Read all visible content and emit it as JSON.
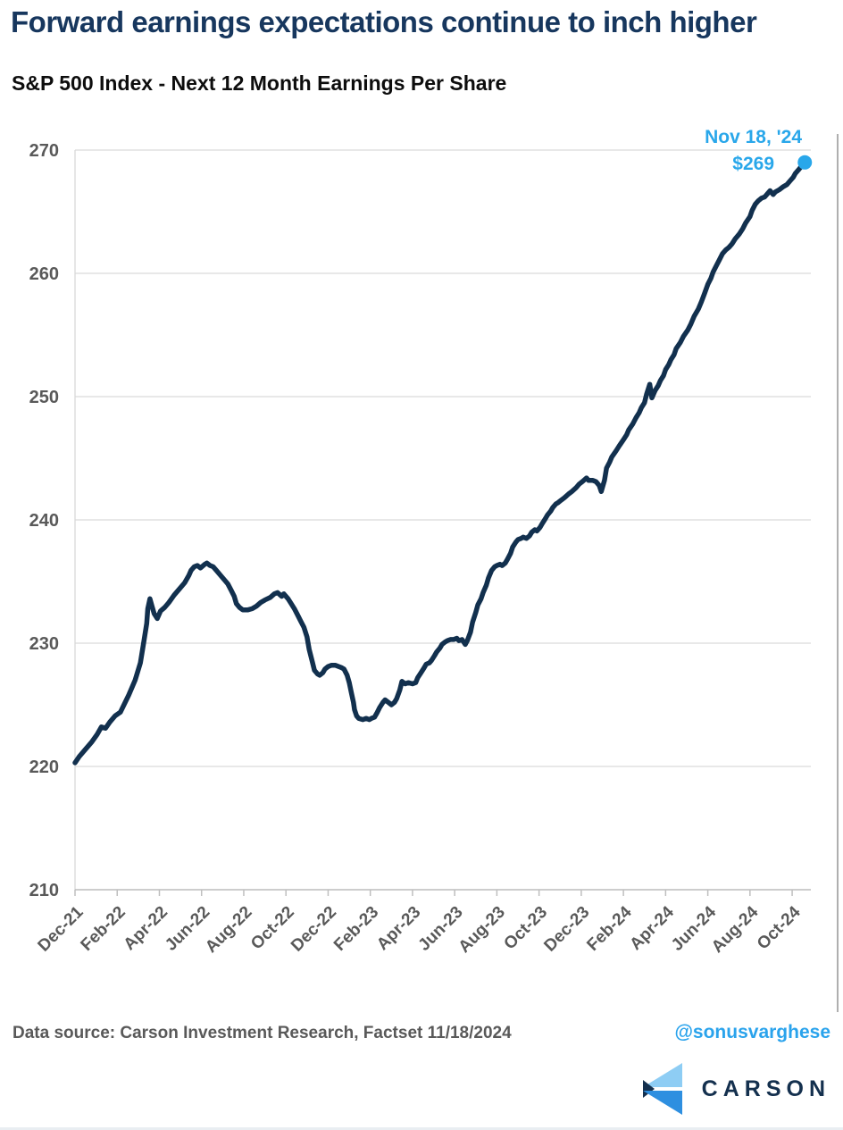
{
  "header": {
    "title": "Forward earnings expectations continue to inch higher",
    "subtitle": "S&P 500 Index - Next 12 Month Earnings Per Share"
  },
  "annotation": {
    "date_label": "Nov 18, '24",
    "value_label": "$269"
  },
  "footer": {
    "source": "Data source: Carson Investment Research, Factset   11/18/2024",
    "handle": "@sonusvarghese"
  },
  "logo": {
    "wordmark": "CARSON"
  },
  "colors": {
    "title_navy": "#17375e",
    "line_navy": "#12304e",
    "accent_blue": "#29a7ea",
    "handle_blue": "#2aa3ec",
    "axis_text_gray": "#595959",
    "gridline_gray": "#d9d9d9",
    "axis_line_gray": "#bfbfbf",
    "logo_light_blue": "#8ecdf4",
    "logo_mid_blue": "#2e8fe0",
    "logo_navy": "#14304e"
  },
  "icons": {
    "carson_mark": "carson-chevron-logo",
    "last_point_marker": "data-point-dot"
  },
  "chart_data": {
    "type": "line",
    "title": "S&P 500 Index - Next 12 Month Earnings Per Share",
    "xlabel": "",
    "ylabel": "",
    "grid": true,
    "legend": "none",
    "y_axis": {
      "range": [
        210,
        270
      ],
      "ticks": [
        270,
        260,
        250,
        240,
        230,
        220,
        210
      ]
    },
    "x_axis": {
      "unit": "months since Dec-2021",
      "tick_every_months": 2,
      "tick_labels": [
        "Dec-21",
        "Feb-22",
        "Apr-22",
        "Jun-22",
        "Aug-22",
        "Oct-22",
        "Dec-22",
        "Feb-23",
        "Apr-23",
        "Jun-23",
        "Aug-23",
        "Oct-23",
        "Dec-23",
        "Feb-24",
        "Apr-24",
        "Jun-24",
        "Aug-24",
        "Oct-24"
      ],
      "label_rotation_deg": -45
    },
    "last_point": {
      "date": "Nov 18, '24",
      "value": 269
    },
    "series": [
      {
        "name": "Next 12 Month EPS",
        "color": "#12304e",
        "points": [
          [
            0,
            220.3
          ],
          [
            0.2,
            220.8
          ],
          [
            0.5,
            221.4
          ],
          [
            0.8,
            222.0
          ],
          [
            1.05,
            222.6
          ],
          [
            1.25,
            223.2
          ],
          [
            1.45,
            223.1
          ],
          [
            1.65,
            223.6
          ],
          [
            1.9,
            224.1
          ],
          [
            2.15,
            224.4
          ],
          [
            2.55,
            225.8
          ],
          [
            2.85,
            227.0
          ],
          [
            3.1,
            228.4
          ],
          [
            3.25,
            230.0
          ],
          [
            3.4,
            231.6
          ],
          [
            3.45,
            232.8
          ],
          [
            3.55,
            233.6
          ],
          [
            3.65,
            233.0
          ],
          [
            3.75,
            232.4
          ],
          [
            3.9,
            232.0
          ],
          [
            4.05,
            232.6
          ],
          [
            4.25,
            232.9
          ],
          [
            4.45,
            233.3
          ],
          [
            4.7,
            233.9
          ],
          [
            4.95,
            234.4
          ],
          [
            5.2,
            234.9
          ],
          [
            5.4,
            235.5
          ],
          [
            5.5,
            235.9
          ],
          [
            5.65,
            236.2
          ],
          [
            5.8,
            236.3
          ],
          [
            5.95,
            236.1
          ],
          [
            6.15,
            236.4
          ],
          [
            6.25,
            236.5
          ],
          [
            6.4,
            236.3
          ],
          [
            6.55,
            236.2
          ],
          [
            6.7,
            235.9
          ],
          [
            6.9,
            235.5
          ],
          [
            7.1,
            235.1
          ],
          [
            7.25,
            234.8
          ],
          [
            7.4,
            234.3
          ],
          [
            7.55,
            233.8
          ],
          [
            7.65,
            233.2
          ],
          [
            7.8,
            232.9
          ],
          [
            7.95,
            232.7
          ],
          [
            8.2,
            232.7
          ],
          [
            8.4,
            232.8
          ],
          [
            8.6,
            233.0
          ],
          [
            8.8,
            233.3
          ],
          [
            9.0,
            233.5
          ],
          [
            9.25,
            233.7
          ],
          [
            9.45,
            234.0
          ],
          [
            9.6,
            234.1
          ],
          [
            9.8,
            233.8
          ],
          [
            9.9,
            234.0
          ],
          [
            10.1,
            233.6
          ],
          [
            10.25,
            233.2
          ],
          [
            10.4,
            232.8
          ],
          [
            10.55,
            232.3
          ],
          [
            10.7,
            231.8
          ],
          [
            10.85,
            231.3
          ],
          [
            11.0,
            230.5
          ],
          [
            11.1,
            229.5
          ],
          [
            11.25,
            228.5
          ],
          [
            11.35,
            227.8
          ],
          [
            11.5,
            227.5
          ],
          [
            11.6,
            227.4
          ],
          [
            11.75,
            227.6
          ],
          [
            11.85,
            227.9
          ],
          [
            12.0,
            228.1
          ],
          [
            12.15,
            228.2
          ],
          [
            12.35,
            228.2
          ],
          [
            12.5,
            228.1
          ],
          [
            12.65,
            228.0
          ],
          [
            12.75,
            227.9
          ],
          [
            12.9,
            227.4
          ],
          [
            13.0,
            226.8
          ],
          [
            13.1,
            226.0
          ],
          [
            13.2,
            225.2
          ],
          [
            13.25,
            224.6
          ],
          [
            13.35,
            224.1
          ],
          [
            13.45,
            223.9
          ],
          [
            13.65,
            223.8
          ],
          [
            13.8,
            223.9
          ],
          [
            13.95,
            223.8
          ],
          [
            14.05,
            223.9
          ],
          [
            14.2,
            224.0
          ],
          [
            14.3,
            224.3
          ],
          [
            14.45,
            224.8
          ],
          [
            14.6,
            225.2
          ],
          [
            14.7,
            225.4
          ],
          [
            14.85,
            225.2
          ],
          [
            15.0,
            225.0
          ],
          [
            15.15,
            225.2
          ],
          [
            15.25,
            225.5
          ],
          [
            15.4,
            226.2
          ],
          [
            15.5,
            226.9
          ],
          [
            15.65,
            226.7
          ],
          [
            15.8,
            226.8
          ],
          [
            16.0,
            226.7
          ],
          [
            16.15,
            226.8
          ],
          [
            16.25,
            227.2
          ],
          [
            16.4,
            227.6
          ],
          [
            16.55,
            228.0
          ],
          [
            16.65,
            228.3
          ],
          [
            16.8,
            228.4
          ],
          [
            16.9,
            228.6
          ],
          [
            17.05,
            229.0
          ],
          [
            17.15,
            229.3
          ],
          [
            17.3,
            229.6
          ],
          [
            17.4,
            229.9
          ],
          [
            17.55,
            230.1
          ],
          [
            17.65,
            230.2
          ],
          [
            17.8,
            230.3
          ],
          [
            17.95,
            230.3
          ],
          [
            18.1,
            230.4
          ],
          [
            18.2,
            230.2
          ],
          [
            18.35,
            230.3
          ],
          [
            18.5,
            229.9
          ],
          [
            18.6,
            230.2
          ],
          [
            18.75,
            230.9
          ],
          [
            18.85,
            231.7
          ],
          [
            19.0,
            232.5
          ],
          [
            19.1,
            233.1
          ],
          [
            19.25,
            233.6
          ],
          [
            19.35,
            234.1
          ],
          [
            19.5,
            234.7
          ],
          [
            19.6,
            235.3
          ],
          [
            19.75,
            235.9
          ],
          [
            19.9,
            236.2
          ],
          [
            20.0,
            236.3
          ],
          [
            20.15,
            236.4
          ],
          [
            20.25,
            236.3
          ],
          [
            20.4,
            236.5
          ],
          [
            20.5,
            236.8
          ],
          [
            20.65,
            237.3
          ],
          [
            20.75,
            237.8
          ],
          [
            20.9,
            238.2
          ],
          [
            21.0,
            238.4
          ],
          [
            21.15,
            238.5
          ],
          [
            21.25,
            238.6
          ],
          [
            21.4,
            238.5
          ],
          [
            21.55,
            238.7
          ],
          [
            21.65,
            239.0
          ],
          [
            21.8,
            239.2
          ],
          [
            21.9,
            239.1
          ],
          [
            22.05,
            239.4
          ],
          [
            22.15,
            239.7
          ],
          [
            22.3,
            240.1
          ],
          [
            22.4,
            240.4
          ],
          [
            22.55,
            240.7
          ],
          [
            22.65,
            241.0
          ],
          [
            22.8,
            241.3
          ],
          [
            22.9,
            241.4
          ],
          [
            23.05,
            241.6
          ],
          [
            23.2,
            241.8
          ],
          [
            23.4,
            242.1
          ],
          [
            23.55,
            242.3
          ],
          [
            23.75,
            242.6
          ],
          [
            23.9,
            242.9
          ],
          [
            24.05,
            243.1
          ],
          [
            24.25,
            243.4
          ],
          [
            24.35,
            243.2
          ],
          [
            24.55,
            243.2
          ],
          [
            24.7,
            243.1
          ],
          [
            24.85,
            242.8
          ],
          [
            24.95,
            242.3
          ],
          [
            25.1,
            243.2
          ],
          [
            25.2,
            244.2
          ],
          [
            25.35,
            244.7
          ],
          [
            25.45,
            245.1
          ],
          [
            25.65,
            245.6
          ],
          [
            25.8,
            246.0
          ],
          [
            26.0,
            246.5
          ],
          [
            26.15,
            246.9
          ],
          [
            26.25,
            247.3
          ],
          [
            26.45,
            247.8
          ],
          [
            26.6,
            248.3
          ],
          [
            26.75,
            248.7
          ],
          [
            26.85,
            249.1
          ],
          [
            27.0,
            249.5
          ],
          [
            27.1,
            250.2
          ],
          [
            27.25,
            251.0
          ],
          [
            27.35,
            249.9
          ],
          [
            27.5,
            250.5
          ],
          [
            27.65,
            250.9
          ],
          [
            27.75,
            251.3
          ],
          [
            27.9,
            251.7
          ],
          [
            28.0,
            252.2
          ],
          [
            28.15,
            252.6
          ],
          [
            28.25,
            253.0
          ],
          [
            28.4,
            253.4
          ],
          [
            28.5,
            253.9
          ],
          [
            28.7,
            254.4
          ],
          [
            28.85,
            254.9
          ],
          [
            29.05,
            255.4
          ],
          [
            29.2,
            255.9
          ],
          [
            29.35,
            256.5
          ],
          [
            29.55,
            257.1
          ],
          [
            29.7,
            257.7
          ],
          [
            29.85,
            258.4
          ],
          [
            30.0,
            259.1
          ],
          [
            30.15,
            259.6
          ],
          [
            30.25,
            260.1
          ],
          [
            30.4,
            260.6
          ],
          [
            30.55,
            261.1
          ],
          [
            30.7,
            261.6
          ],
          [
            30.85,
            261.9
          ],
          [
            31.0,
            262.1
          ],
          [
            31.15,
            262.4
          ],
          [
            31.3,
            262.8
          ],
          [
            31.5,
            263.2
          ],
          [
            31.65,
            263.6
          ],
          [
            31.8,
            264.1
          ],
          [
            32.0,
            264.6
          ],
          [
            32.1,
            265.1
          ],
          [
            32.25,
            265.6
          ],
          [
            32.4,
            265.9
          ],
          [
            32.55,
            266.1
          ],
          [
            32.7,
            266.2
          ],
          [
            32.85,
            266.5
          ],
          [
            32.95,
            266.7
          ],
          [
            33.1,
            266.4
          ],
          [
            33.2,
            266.6
          ],
          [
            33.4,
            266.8
          ],
          [
            33.55,
            267.0
          ],
          [
            33.75,
            267.2
          ],
          [
            33.9,
            267.5
          ],
          [
            34.05,
            267.8
          ],
          [
            34.15,
            268.1
          ],
          [
            34.3,
            268.4
          ],
          [
            34.4,
            268.6
          ],
          [
            34.5,
            268.8
          ],
          [
            34.6,
            269.0
          ]
        ]
      }
    ]
  }
}
